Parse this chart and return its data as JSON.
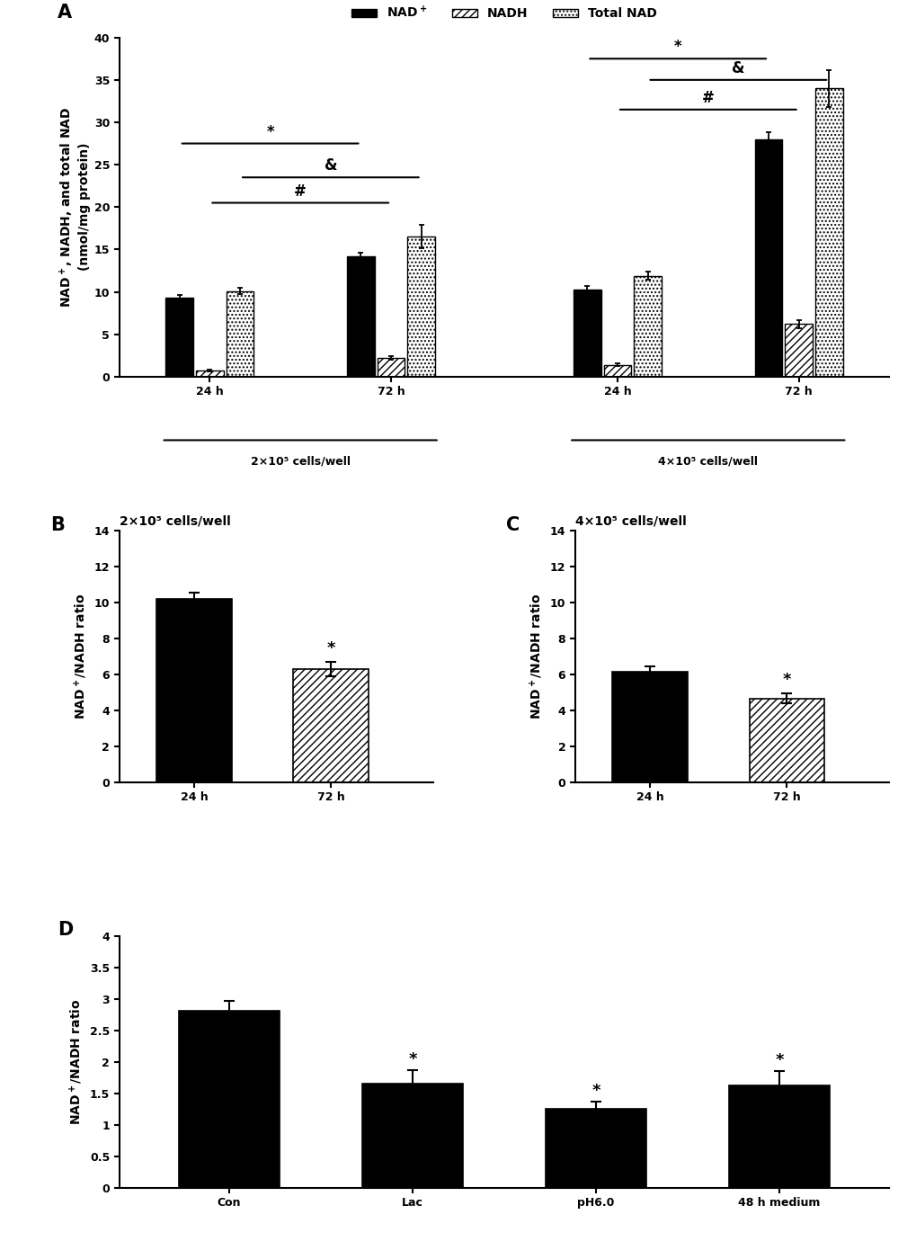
{
  "panel_A": {
    "nad_values": [
      9.3,
      14.2,
      10.3,
      28.0
    ],
    "nad_errors": [
      0.35,
      0.4,
      0.4,
      0.8
    ],
    "nadh_values": [
      0.7,
      2.2,
      1.4,
      6.2
    ],
    "nadh_errors": [
      0.12,
      0.25,
      0.18,
      0.45
    ],
    "total_values": [
      10.1,
      16.5,
      11.9,
      34.0
    ],
    "total_errors": [
      0.35,
      1.4,
      0.5,
      2.2
    ],
    "ylim": [
      0,
      40
    ],
    "yticks": [
      0,
      5,
      10,
      15,
      20,
      25,
      30,
      35,
      40
    ],
    "ylabel": "NAD+, NADH, and total NAD\n(nmol/mg protein)",
    "group_labels": [
      "24 h",
      "72 h",
      "24 h",
      "72 h"
    ],
    "cell_labels": [
      "2×10⁵ cells/well",
      "4×10⁵ cells/well"
    ]
  },
  "panel_B": {
    "values": [
      10.2,
      6.3
    ],
    "errors": [
      0.38,
      0.38
    ],
    "ylim": [
      0,
      14
    ],
    "yticks": [
      0,
      2,
      4,
      6,
      8,
      10,
      12,
      14
    ],
    "ylabel": "NAD+/NADH ratio",
    "title": "2×10⁵ cells/well",
    "xticklabels": [
      "24 h",
      "72 h"
    ]
  },
  "panel_C": {
    "values": [
      6.15,
      4.65
    ],
    "errors": [
      0.28,
      0.28
    ],
    "ylim": [
      0,
      14
    ],
    "yticks": [
      0,
      2,
      4,
      6,
      8,
      10,
      12,
      14
    ],
    "ylabel": "NAD+/NADH ratio",
    "title": "4×10⁵ cells/well",
    "xticklabels": [
      "24 h",
      "72 h"
    ]
  },
  "panel_D": {
    "values": [
      2.82,
      1.65,
      1.25,
      1.62
    ],
    "errors": [
      0.15,
      0.22,
      0.12,
      0.24
    ],
    "ylim": [
      0,
      4
    ],
    "yticks": [
      0,
      0.5,
      1.0,
      1.5,
      2.0,
      2.5,
      3.0,
      3.5,
      4.0
    ],
    "ylabel": "NAD+/NADH ratio",
    "xticklabels": [
      "Con",
      "Lac",
      "pH6.0",
      "48 h medium"
    ],
    "sig_indices": [
      1,
      2,
      3
    ]
  },
  "solid_color": "#000000",
  "hatch_diagonal": "////",
  "hatch_dots": "....",
  "background_color": "#ffffff",
  "fontsize_label": 10,
  "fontsize_tick": 9,
  "fontsize_title": 10,
  "fontsize_panel": 15,
  "fontsize_sig": 12
}
